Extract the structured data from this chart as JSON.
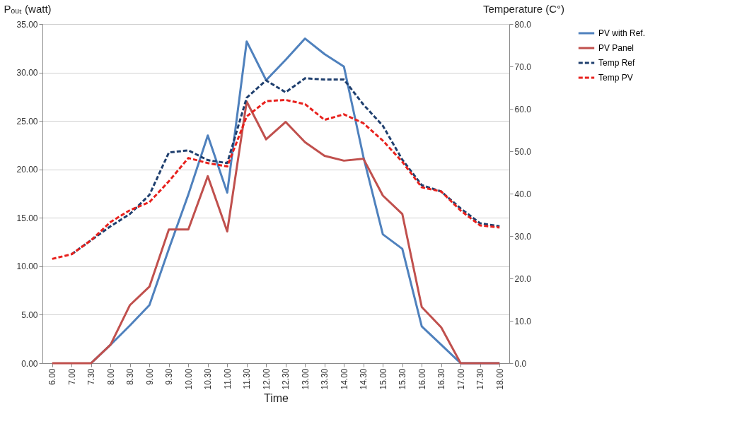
{
  "chart_data": {
    "type": "line",
    "xlabel": "Time",
    "ylabel": "Pₒᵤₜ (watt)",
    "y2label": "Temperature (C°)",
    "categories": [
      "6.00",
      "7.00",
      "7.30",
      "8.00",
      "8.30",
      "9.00",
      "9.30",
      "10.00",
      "10.30",
      "11.00",
      "11.30",
      "12.00",
      "12.30",
      "13.00",
      "13.30",
      "14.00",
      "14.30",
      "15.00",
      "15.30",
      "16.00",
      "16.30",
      "17.00",
      "17.30",
      "18.00"
    ],
    "series": [
      {
        "name": "PV with Ref.",
        "color": "#4f81bd",
        "line_style": "solid",
        "values": [
          null,
          null,
          0,
          1.9,
          3.9,
          6.0,
          11.8,
          17.4,
          23.5,
          17.6,
          33.2,
          29.2,
          31.3,
          33.5,
          31.9,
          30.6,
          21.3,
          13.3,
          11.8,
          3.8,
          1.9,
          0,
          0,
          0
        ]
      },
      {
        "name": "PV Panel",
        "color": "#c0504d",
        "line_style": "solid",
        "values": [
          0,
          0,
          0,
          1.9,
          6.0,
          7.9,
          13.8,
          13.8,
          19.3,
          13.6,
          27.0,
          23.1,
          24.9,
          22.8,
          21.4,
          20.9,
          21.1,
          17.3,
          15.4,
          5.8,
          3.7,
          0,
          0,
          0
        ]
      },
      {
        "name": "Temp Ref",
        "color": "#1f3f6e",
        "line_style": "dashed",
        "axis": "y2",
        "values": [
          null,
          25.7,
          29.0,
          32.3,
          35.2,
          39.7,
          49.7,
          50.2,
          47.9,
          47.2,
          62.6,
          66.7,
          63.9,
          67.2,
          66.9,
          66.9,
          61.0,
          56.0,
          48.0,
          42.0,
          40.5,
          36.5,
          33.0,
          32.3
        ]
      },
      {
        "name": "Temp PV",
        "color": "#e8211d",
        "line_style": "dashed",
        "axis": "y2",
        "values": [
          24.6,
          25.7,
          29.0,
          33.3,
          36.1,
          38.0,
          42.9,
          48.4,
          47.2,
          46.4,
          58.2,
          61.8,
          62.1,
          61.1,
          57.4,
          58.7,
          56.6,
          52.5,
          47.5,
          41.5,
          40.5,
          36.0,
          32.5,
          32.0
        ]
      }
    ],
    "ylim": [
      0,
      35
    ],
    "yticks": [
      {
        "value": 0,
        "label": "0.00"
      },
      {
        "value": 5,
        "label": "5.00"
      },
      {
        "value": 10,
        "label": "10.00"
      },
      {
        "value": 15,
        "label": "15.00"
      },
      {
        "value": 20,
        "label": "20.00"
      },
      {
        "value": 25,
        "label": "25.00"
      },
      {
        "value": 30,
        "label": "30.00"
      },
      {
        "value": 35,
        "label": "35.00"
      }
    ],
    "y2lim": [
      0,
      80
    ],
    "y2ticks": [
      {
        "value": 0,
        "label": "0.0"
      },
      {
        "value": 10,
        "label": "10.0"
      },
      {
        "value": 20,
        "label": "20.0"
      },
      {
        "value": 30,
        "label": "30.0"
      },
      {
        "value": 40,
        "label": "40.0"
      },
      {
        "value": 50,
        "label": "50.0"
      },
      {
        "value": 60,
        "label": "60.0"
      },
      {
        "value": 70,
        "label": "70.0"
      },
      {
        "value": 80,
        "label": "80.0"
      }
    ],
    "grid": "y",
    "legend": "right"
  }
}
